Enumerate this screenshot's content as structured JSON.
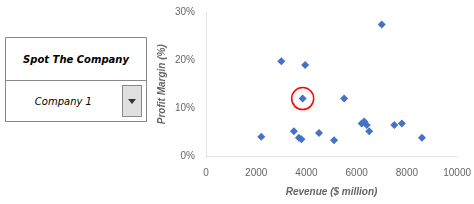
{
  "chart_data": {
    "type": "scatter",
    "x": [
      2200,
      3000,
      3500,
      3700,
      3800,
      3850,
      3950,
      4500,
      5100,
      5500,
      6200,
      6300,
      6400,
      6500,
      7000,
      7500,
      7800,
      8600
    ],
    "values": [
      4.0,
      19.8,
      5.2,
      3.8,
      3.5,
      12.0,
      19.0,
      4.8,
      3.3,
      12.0,
      6.8,
      7.2,
      6.5,
      5.2,
      27.5,
      6.5,
      6.8,
      3.8
    ],
    "color": "#4472C4",
    "marker": "diamond",
    "highlight": {
      "x": 3850,
      "y": 12.0,
      "color": "#FF0000"
    },
    "x_label": "Revenue ($ million)",
    "y_label": "Profit Margin (%)",
    "xlim": [
      0,
      10000
    ],
    "ylim": [
      0,
      30
    ],
    "xticks": [
      0,
      2000,
      4000,
      6000,
      8000,
      10000
    ],
    "yticks": [
      {
        "value": 0,
        "label": "0%"
      },
      {
        "value": 10,
        "label": "10%"
      },
      {
        "value": 20,
        "label": "20%"
      },
      {
        "value": 30,
        "label": "30%"
      }
    ],
    "grid": false,
    "annotations": [
      "Spot The Company",
      "Company 1"
    ]
  }
}
